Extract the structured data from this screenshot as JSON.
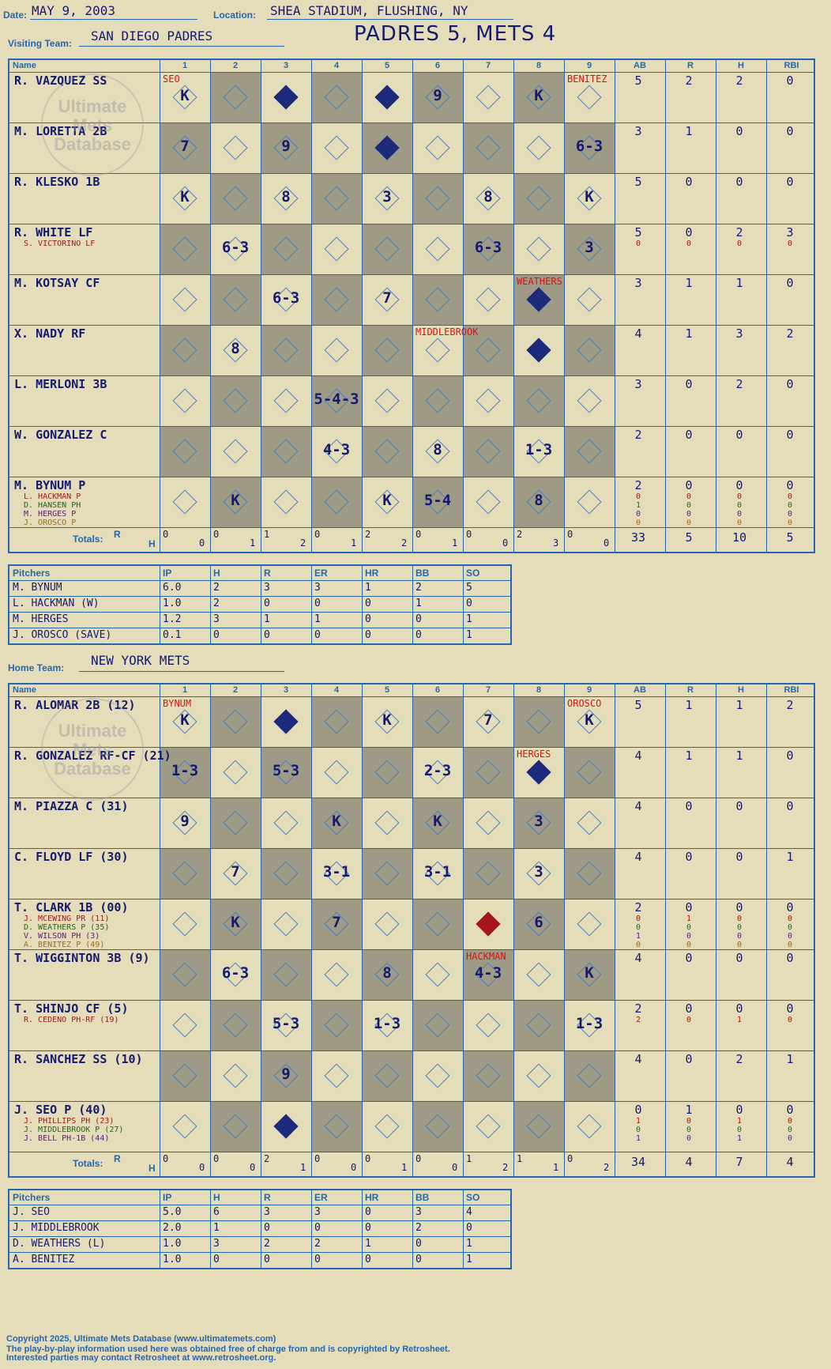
{
  "header": {
    "date_label": "Date:",
    "date": "MAY 9, 2003",
    "location_label": "Location:",
    "location": "SHEA STADIUM, FLUSHING, NY",
    "score_title": "PADRES 5, METS 4"
  },
  "visiting": {
    "team_label": "Visiting Team:",
    "team": "SAN DIEGO PADRES",
    "columns": [
      "Name",
      "1",
      "2",
      "3",
      "4",
      "5",
      "6",
      "7",
      "8",
      "9",
      "AB",
      "R",
      "H",
      "RBI"
    ],
    "batters": [
      {
        "name": "R. VAZQUEZ SS",
        "subs": [],
        "stats": [
          "5",
          "2",
          "2",
          "0"
        ],
        "subs_stats": []
      },
      {
        "name": "M. LORETTA 2B",
        "subs": [],
        "stats": [
          "3",
          "1",
          "0",
          "0"
        ],
        "subs_stats": []
      },
      {
        "name": "R. KLESKO 1B",
        "subs": [],
        "stats": [
          "5",
          "0",
          "0",
          "0"
        ],
        "subs_stats": []
      },
      {
        "name": "R. WHITE LF",
        "subs": [
          "S. VICTORINO LF"
        ],
        "stats": [
          "5",
          "0",
          "2",
          "3"
        ],
        "subs_stats": [
          [
            "0",
            "0",
            "0",
            "0"
          ]
        ]
      },
      {
        "name": "M. KOTSAY CF",
        "subs": [],
        "stats": [
          "3",
          "1",
          "1",
          "0"
        ],
        "subs_stats": []
      },
      {
        "name": "X. NADY RF",
        "subs": [],
        "stats": [
          "4",
          "1",
          "3",
          "2"
        ],
        "subs_stats": []
      },
      {
        "name": "L. MERLONI 3B",
        "subs": [],
        "stats": [
          "3",
          "0",
          "2",
          "0"
        ],
        "subs_stats": []
      },
      {
        "name": "W. GONZALEZ C",
        "subs": [],
        "stats": [
          "2",
          "0",
          "0",
          "0"
        ],
        "subs_stats": []
      },
      {
        "name": "M. BYNUM P",
        "subs": [
          "L. HACKMAN P",
          "D. HANSEN PH",
          "M. HERGES P",
          "J. OROSCO P"
        ],
        "stats": [
          "2",
          "0",
          "0",
          "0"
        ],
        "subs_stats": [
          [
            "0",
            "0",
            "0",
            "0"
          ],
          [
            "1",
            "0",
            "0",
            "0"
          ],
          [
            "0",
            "0",
            "0",
            "0"
          ],
          [
            "0",
            "0",
            "0",
            "0"
          ]
        ]
      }
    ],
    "totals_label": "Totals:",
    "totals_rh": [
      "R",
      "H"
    ],
    "inning_totals": [
      [
        "0",
        "0"
      ],
      [
        "0",
        "1"
      ],
      [
        "1",
        "2"
      ],
      [
        "0",
        "1"
      ],
      [
        "2",
        "2"
      ],
      [
        "0",
        "1"
      ],
      [
        "0",
        "0"
      ],
      [
        "2",
        "3"
      ],
      [
        "0",
        "0"
      ]
    ],
    "game_totals": [
      "33",
      "5",
      "10",
      "5"
    ],
    "plays": [
      [
        "K",
        "",
        "◆",
        "",
        "◆",
        "9",
        "",
        "K",
        ""
      ],
      [
        "7",
        "",
        "9",
        "",
        "◆",
        "",
        "",
        "",
        "6-3"
      ],
      [
        "K",
        "",
        "8",
        "",
        "3",
        "",
        "8",
        "",
        "K"
      ],
      [
        "",
        "6-3",
        "",
        "",
        "",
        "",
        "6-3",
        "",
        "3"
      ],
      [
        "",
        "",
        "6-3",
        "",
        "7",
        "",
        "",
        "◆",
        ""
      ],
      [
        "",
        "8",
        "",
        "",
        "",
        "",
        "",
        "◆",
        ""
      ],
      [
        "",
        "",
        "",
        "5-4-3",
        "",
        "",
        "",
        "",
        ""
      ],
      [
        "",
        "",
        "",
        "4-3",
        "",
        "8",
        "",
        "1-3",
        ""
      ],
      [
        "",
        "K",
        "",
        "",
        "K",
        "5-4",
        "",
        "8",
        ""
      ]
    ],
    "pitching_changes": [
      "SEO",
      "BENITEZ",
      "WEATHERS",
      "MIDDLEBROOK"
    ],
    "pitchers": {
      "columns": [
        "Pitchers",
        "IP",
        "H",
        "R",
        "ER",
        "HR",
        "BB",
        "SO"
      ],
      "rows": [
        [
          "M. BYNUM",
          "6.0",
          "2",
          "3",
          "3",
          "1",
          "2",
          "5"
        ],
        [
          "L. HACKMAN (W)",
          "1.0",
          "2",
          "0",
          "0",
          "0",
          "1",
          "0"
        ],
        [
          "M. HERGES",
          "1.2",
          "3",
          "1",
          "1",
          "0",
          "0",
          "1"
        ],
        [
          "J. OROSCO (SAVE)",
          "0.1",
          "0",
          "0",
          "0",
          "0",
          "0",
          "1"
        ]
      ]
    }
  },
  "home": {
    "team_label": "Home Team:",
    "team": "NEW YORK METS",
    "columns": [
      "Name",
      "1",
      "2",
      "3",
      "4",
      "5",
      "6",
      "7",
      "8",
      "9",
      "AB",
      "R",
      "H",
      "RBI"
    ],
    "batters": [
      {
        "name": "R. ALOMAR 2B (12)",
        "subs": [],
        "stats": [
          "5",
          "1",
          "1",
          "2"
        ],
        "subs_stats": []
      },
      {
        "name": "R. GONZALEZ RF-CF (21)",
        "subs": [],
        "stats": [
          "4",
          "1",
          "1",
          "0"
        ],
        "subs_stats": []
      },
      {
        "name": "M. PIAZZA C (31)",
        "subs": [],
        "stats": [
          "4",
          "0",
          "0",
          "0"
        ],
        "subs_stats": []
      },
      {
        "name": "C. FLOYD LF (30)",
        "subs": [],
        "stats": [
          "4",
          "0",
          "0",
          "1"
        ],
        "subs_stats": []
      },
      {
        "name": "T. CLARK 1B (00)",
        "subs": [
          "J. MCEWING PR (11)",
          "D. WEATHERS P (35)",
          "V. WILSON PH (3)",
          "A. BENITEZ P (49)"
        ],
        "stats": [
          "2",
          "0",
          "0",
          "0"
        ],
        "subs_stats": [
          [
            "0",
            "1",
            "0",
            "0"
          ],
          [
            "0",
            "0",
            "0",
            "0"
          ],
          [
            "1",
            "0",
            "0",
            "0"
          ],
          [
            "0",
            "0",
            "0",
            "0"
          ]
        ]
      },
      {
        "name": "T. WIGGINTON 3B (9)",
        "subs": [],
        "stats": [
          "4",
          "0",
          "0",
          "0"
        ],
        "subs_stats": []
      },
      {
        "name": "T. SHINJO CF (5)",
        "subs": [
          "R. CEDENO PH-RF (19)"
        ],
        "stats": [
          "2",
          "0",
          "0",
          "0"
        ],
        "subs_stats": [
          [
            "2",
            "0",
            "1",
            "0"
          ]
        ]
      },
      {
        "name": "R. SANCHEZ SS (10)",
        "subs": [],
        "stats": [
          "4",
          "0",
          "2",
          "1"
        ],
        "subs_stats": []
      },
      {
        "name": "J. SEO P (40)",
        "subs": [
          "J. PHILLIPS PH (23)",
          "J. MIDDLEBROOK P (27)",
          "J. BELL PH-1B (44)"
        ],
        "stats": [
          "0",
          "1",
          "0",
          "0"
        ],
        "subs_stats": [
          [
            "1",
            "0",
            "1",
            "0"
          ],
          [
            "0",
            "0",
            "0",
            "0"
          ],
          [
            "1",
            "0",
            "1",
            "0"
          ]
        ]
      }
    ],
    "totals_label": "Totals:",
    "totals_rh": [
      "R",
      "H"
    ],
    "inning_totals": [
      [
        "0",
        "0"
      ],
      [
        "0",
        "0"
      ],
      [
        "2",
        "1"
      ],
      [
        "0",
        "0"
      ],
      [
        "0",
        "1"
      ],
      [
        "0",
        "0"
      ],
      [
        "1",
        "2"
      ],
      [
        "1",
        "1"
      ],
      [
        "0",
        "2"
      ]
    ],
    "game_totals": [
      "34",
      "4",
      "7",
      "4"
    ],
    "plays": [
      [
        "K",
        "",
        "◆",
        "",
        "K",
        "",
        "7",
        "",
        "K"
      ],
      [
        "1-3",
        "",
        "5-3",
        "",
        "",
        "2-3",
        "",
        "◆",
        ""
      ],
      [
        "9",
        "",
        "",
        "K",
        "",
        "K",
        "",
        "3",
        ""
      ],
      [
        "",
        "7",
        "",
        "3-1",
        "",
        "3-1",
        "",
        "3",
        ""
      ],
      [
        "",
        "K",
        "",
        "7",
        "",
        "",
        "◆",
        "6",
        ""
      ],
      [
        "",
        "6-3",
        "",
        "",
        "8",
        "",
        "4-3",
        "",
        "K"
      ],
      [
        "",
        "",
        "5-3",
        "",
        "1-3",
        "",
        "",
        "",
        "1-3"
      ],
      [
        "",
        "",
        "9",
        "",
        "",
        "",
        "",
        "",
        ""
      ],
      [
        "",
        "",
        "◆",
        "",
        "",
        "",
        "",
        "",
        ""
      ]
    ],
    "pitching_changes": [
      "BYNUM",
      "OROSCO",
      "HERGES",
      "HACKMAN"
    ],
    "pitchers": {
      "columns": [
        "Pitchers",
        "IP",
        "H",
        "R",
        "ER",
        "HR",
        "BB",
        "SO"
      ],
      "rows": [
        [
          "J. SEO",
          "5.0",
          "6",
          "3",
          "3",
          "0",
          "3",
          "4"
        ],
        [
          "J. MIDDLEBROOK",
          "2.0",
          "1",
          "0",
          "0",
          "0",
          "2",
          "0"
        ],
        [
          "D. WEATHERS (L)",
          "1.0",
          "3",
          "2",
          "2",
          "1",
          "0",
          "1"
        ],
        [
          "A. BENITEZ",
          "1.0",
          "0",
          "0",
          "0",
          "0",
          "0",
          "1"
        ]
      ]
    }
  },
  "watermark": [
    "Ultimate",
    "Mets",
    "Database"
  ],
  "footer": {
    "line1": "Copyright 2025, Ultimate Mets Database (www.ultimatemets.com)",
    "line2": "The play-by-play information used here was obtained free of charge from and is copyrighted by Retrosheet.",
    "line3": "Interested parties may contact Retrosheet at www.retrosheet.org."
  },
  "colors": {
    "background": "#e5ddb9",
    "grid": "#2566b0",
    "ink": "#151a6e",
    "shade": "#9e9a86",
    "red": "#e01010"
  }
}
